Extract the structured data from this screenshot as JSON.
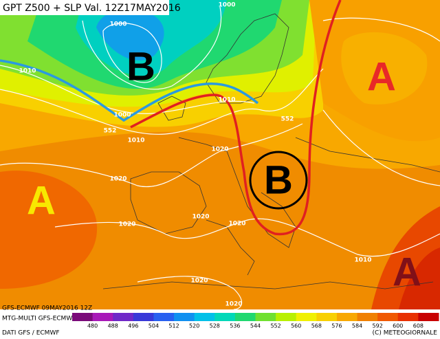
{
  "header": {
    "title": "GPT Z500 + SLP Val. 12Z17MAY2016"
  },
  "map": {
    "letters": [
      "B",
      "A",
      "A",
      "B",
      "A"
    ],
    "labels": [
      "1000",
      "1000",
      "1010",
      "1000",
      "552",
      "1010",
      "1010",
      "552",
      "1020",
      "1020",
      "1020",
      "1020",
      "1020",
      "1010",
      "1020",
      "1020"
    ]
  },
  "footer": {
    "run": "GFS-ECMWF 09MAY2016 12Z",
    "model": "MTG-MULTI GFS-ECMWF",
    "source": "DATI GFS / ECMWF",
    "copyright": "(C) METEOGIORNALE"
  },
  "colorbar": {
    "labels": [
      "480",
      "488",
      "496",
      "504",
      "512",
      "520",
      "528",
      "536",
      "544",
      "552",
      "560",
      "568",
      "576",
      "584",
      "592",
      "600",
      "608"
    ],
    "colors": [
      "#7a0a7a",
      "#a818b8",
      "#7028c8",
      "#3838d8",
      "#2860f0",
      "#1090f0",
      "#00c0e8",
      "#00d8b8",
      "#20d870",
      "#70e030",
      "#b8f000",
      "#f0f000",
      "#f8d000",
      "#f8a800",
      "#f08000",
      "#f05800",
      "#e83000",
      "#c80000"
    ]
  }
}
